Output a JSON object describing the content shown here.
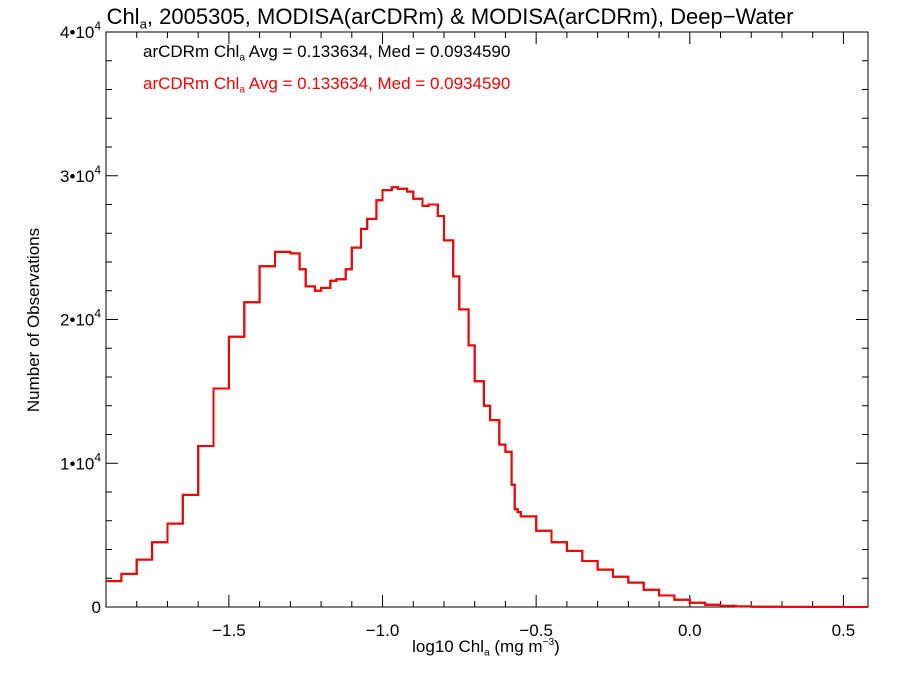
{
  "chart_data": {
    "type": "line",
    "title": {
      "pre": "Chl",
      "sub": "a",
      "post": ", 2005305, MODISA(arCDRm) & MODISA(arCDRm), Deep−Water"
    },
    "xlabel": {
      "pre": "log10 Chl",
      "sub": "a",
      "post": " (mg m",
      "sup": "−3",
      "end": ")"
    },
    "ylabel": "Number of Observations",
    "xlim": [
      -1.9,
      0.58
    ],
    "ylim": [
      0,
      40000
    ],
    "x_ticks": [
      {
        "value": -1.5,
        "label": "−1.5"
      },
      {
        "value": -1.0,
        "label": "−1.0"
      },
      {
        "value": -0.5,
        "label": "−0.5"
      },
      {
        "value": 0.0,
        "label": "0.0"
      },
      {
        "value": 0.5,
        "label": "0.5"
      }
    ],
    "y_ticks": [
      {
        "value": 0,
        "label": "0",
        "exp": ""
      },
      {
        "value": 10000,
        "label": "1•10",
        "exp": "4"
      },
      {
        "value": 20000,
        "label": "2•10",
        "exp": "4"
      },
      {
        "value": 30000,
        "label": "3•10",
        "exp": "4"
      },
      {
        "value": 40000,
        "label": "4•10",
        "exp": "4"
      }
    ],
    "legend": [
      {
        "pre": "arCDRm Chl",
        "sub": "a",
        "post": " Avg = 0.133634, Med = 0.0934590",
        "color": "#000000"
      },
      {
        "pre": "arCDRm Chl",
        "sub": "a",
        "post": " Avg = 0.133634, Med = 0.0934590",
        "color": "#ff0000"
      }
    ],
    "grid": false,
    "series": [
      {
        "color": "#ff0000",
        "step": true,
        "x": [
          -1.9,
          -1.85,
          -1.8,
          -1.75,
          -1.7,
          -1.65,
          -1.6,
          -1.55,
          -1.5,
          -1.45,
          -1.4,
          -1.35,
          -1.3,
          -1.27,
          -1.25,
          -1.22,
          -1.2,
          -1.17,
          -1.15,
          -1.12,
          -1.1,
          -1.07,
          -1.05,
          -1.02,
          -1.0,
          -0.97,
          -0.95,
          -0.92,
          -0.9,
          -0.87,
          -0.85,
          -0.82,
          -0.8,
          -0.77,
          -0.75,
          -0.72,
          -0.7,
          -0.67,
          -0.65,
          -0.62,
          -0.6,
          -0.58,
          -0.57,
          -0.56,
          -0.55,
          -0.5,
          -0.45,
          -0.4,
          -0.35,
          -0.3,
          -0.25,
          -0.2,
          -0.15,
          -0.1,
          -0.05,
          0.0,
          0.05,
          0.1,
          0.15,
          0.2,
          0.3,
          0.4,
          0.5,
          0.58
        ],
        "y": [
          1800,
          2300,
          3300,
          4500,
          5800,
          7800,
          11200,
          15200,
          18800,
          21200,
          23700,
          24700,
          24600,
          23500,
          22300,
          22000,
          22200,
          22700,
          22800,
          23500,
          25000,
          26300,
          27000,
          28300,
          29000,
          29200,
          29100,
          28900,
          28400,
          27900,
          28000,
          27200,
          25500,
          23000,
          20700,
          18200,
          15700,
          14000,
          13000,
          11300,
          10800,
          8500,
          6800,
          6600,
          6300,
          5300,
          4500,
          3900,
          3200,
          2600,
          2100,
          1700,
          1200,
          800,
          500,
          300,
          150,
          80,
          40,
          20,
          10,
          5,
          2,
          1
        ]
      },
      {
        "color": "#000000",
        "step": true,
        "x": [
          -1.9,
          -1.85,
          -1.8,
          -1.75,
          -1.7,
          -1.65,
          -1.6,
          -1.55,
          -1.5,
          -1.45,
          -1.4,
          -1.35,
          -1.3,
          -1.27,
          -1.25,
          -1.22,
          -1.2,
          -1.17,
          -1.15,
          -1.12,
          -1.1,
          -1.07,
          -1.05,
          -1.02,
          -1.0,
          -0.97,
          -0.95,
          -0.92,
          -0.9,
          -0.87,
          -0.85,
          -0.82,
          -0.8,
          -0.77,
          -0.75,
          -0.72,
          -0.7,
          -0.67,
          -0.65,
          -0.62,
          -0.6,
          -0.58,
          -0.57,
          -0.56,
          -0.55,
          -0.5,
          -0.45,
          -0.4,
          -0.35,
          -0.3,
          -0.25,
          -0.2,
          -0.15,
          -0.1,
          -0.05,
          0.0,
          0.05,
          0.1,
          0.15,
          0.2,
          0.3,
          0.4,
          0.5,
          0.58
        ],
        "y": [
          1800,
          2300,
          3300,
          4500,
          5800,
          7800,
          11200,
          15200,
          18800,
          21200,
          23700,
          24700,
          24600,
          23500,
          22300,
          22000,
          22200,
          22700,
          22800,
          23500,
          25000,
          26300,
          27000,
          28300,
          29000,
          29200,
          29100,
          28900,
          28400,
          27900,
          28000,
          27200,
          25500,
          23000,
          20700,
          18200,
          15700,
          14000,
          13000,
          11300,
          10800,
          8500,
          6800,
          6600,
          6300,
          5300,
          4500,
          3900,
          3200,
          2600,
          2100,
          1700,
          1200,
          800,
          500,
          300,
          150,
          80,
          40,
          20,
          10,
          5,
          2,
          1
        ]
      }
    ]
  }
}
